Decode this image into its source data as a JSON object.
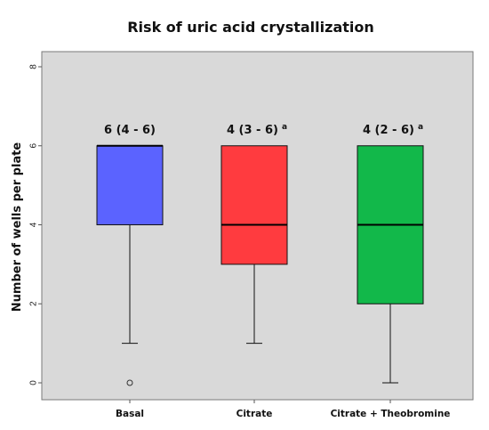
{
  "chart_data": {
    "type": "boxplot",
    "title": "Risk of uric acid crystallization",
    "ylabel": "Number of wells per plate",
    "xlabel": "",
    "ylim": [
      0,
      8
    ],
    "yticks": [
      0,
      2,
      4,
      6,
      8
    ],
    "grid": false,
    "background": "#d9d9d9",
    "categories": [
      "Basal",
      "Citrate",
      "Citrate + Theobromine"
    ],
    "series": [
      {
        "category": "Basal",
        "color": "#5b63ff",
        "whisker_low": 1,
        "q1": 4,
        "median": 6,
        "q3": 6,
        "whisker_high": 6,
        "outliers": [
          0
        ],
        "annotation": "6 (4 - 6)",
        "annotation_sup": ""
      },
      {
        "category": "Citrate",
        "color": "#ff3b3f",
        "whisker_low": 1,
        "q1": 3,
        "median": 4,
        "q3": 6,
        "whisker_high": 6,
        "outliers": [],
        "annotation": "4 (3 - 6)",
        "annotation_sup": "a"
      },
      {
        "category": "Citrate + Theobromine",
        "color": "#12b84a",
        "whisker_low": 0,
        "q1": 2,
        "median": 4,
        "q3": 6,
        "whisker_high": 6,
        "outliers": [],
        "annotation": "4 (2 - 6)",
        "annotation_sup": "a"
      }
    ]
  }
}
